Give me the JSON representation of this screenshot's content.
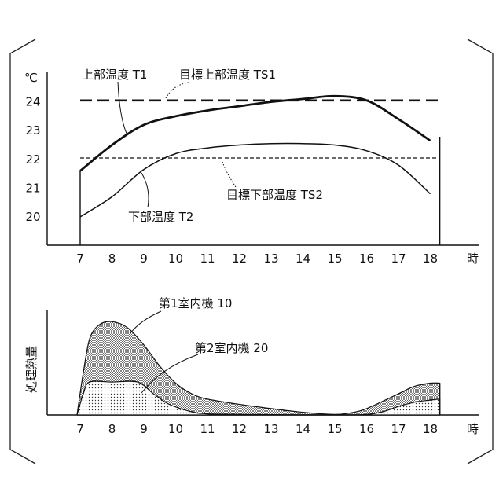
{
  "chart_data": [
    {
      "type": "line",
      "ylabel": "℃",
      "xunit": "時",
      "x": [
        7,
        8,
        9,
        10,
        11,
        12,
        13,
        14,
        15,
        16,
        17,
        18
      ],
      "xlim": [
        6.1,
        18.3
      ],
      "ylim": [
        19.1,
        25.0
      ],
      "yticks": [
        20,
        21,
        22,
        23,
        24
      ],
      "series": [
        {
          "name": "上部温度 T1",
          "style": "solid-thick",
          "x": [
            7,
            8,
            9,
            10,
            11,
            12,
            13,
            14,
            15,
            16,
            17,
            18
          ],
          "values": [
            21.6,
            22.5,
            23.2,
            23.5,
            23.7,
            23.85,
            24.0,
            24.1,
            24.2,
            24.05,
            23.4,
            22.65
          ]
        },
        {
          "name": "目標上部温度 TS1",
          "style": "dashed-long",
          "x": [
            7,
            18.3
          ],
          "values": [
            24.05,
            24.05
          ]
        },
        {
          "name": "下部温度 T2",
          "style": "solid-thin",
          "x": [
            7,
            8,
            9,
            10,
            11,
            12,
            13,
            14,
            15,
            16,
            17,
            18
          ],
          "values": [
            20.0,
            20.7,
            21.65,
            22.2,
            22.4,
            22.5,
            22.55,
            22.55,
            22.5,
            22.3,
            21.8,
            20.8
          ]
        },
        {
          "name": "目標下部温度 TS2",
          "style": "dashed-short",
          "x": [
            7,
            18.3
          ],
          "values": [
            22.05,
            22.05
          ]
        }
      ]
    },
    {
      "type": "area",
      "ylabel": "処理熱量",
      "xunit": "時",
      "x": [
        7,
        8,
        9,
        10,
        11,
        12,
        13,
        14,
        15,
        16,
        17,
        18
      ],
      "xlim": [
        6.1,
        18.3
      ],
      "ylim": [
        0,
        1.0
      ],
      "series": [
        {
          "name": "第1室内機 10",
          "fill": "dense-dots",
          "x": [
            6.9,
            7.1,
            7.3,
            7.6,
            8.0,
            8.5,
            9.0,
            9.5,
            10.0,
            10.5,
            11.0,
            12.0,
            13.0,
            14.0,
            15.0,
            15.5,
            16.0,
            17.0,
            17.5,
            18.0,
            18.3
          ],
          "values": [
            0,
            0.4,
            0.72,
            0.85,
            0.88,
            0.82,
            0.66,
            0.46,
            0.3,
            0.2,
            0.15,
            0.1,
            0.06,
            0.025,
            0.005,
            0.02,
            0.06,
            0.2,
            0.27,
            0.3,
            0.3
          ]
        },
        {
          "name": "第2室内機 20",
          "fill": "sparse-dots",
          "x": [
            6.9,
            7.1,
            7.3,
            8.0,
            8.8,
            9.3,
            9.8,
            10.5,
            11.0,
            12.0,
            13.0,
            14.0,
            15.0,
            16.0,
            16.5,
            17.0,
            17.5,
            18.0,
            18.3
          ],
          "values": [
            0,
            0.2,
            0.31,
            0.31,
            0.31,
            0.2,
            0.1,
            0.03,
            0.01,
            0.005,
            0.003,
            0.002,
            0.002,
            0.005,
            0.03,
            0.08,
            0.12,
            0.14,
            0.15
          ]
        }
      ]
    }
  ],
  "annotations": {
    "t1": "上部温度 T1",
    "ts1": "目標上部温度 TS1",
    "t2": "下部温度 T2",
    "ts2": "目標下部温度 TS2",
    "unit10": "第1室内機 10",
    "unit20": "第2室内機 20"
  }
}
